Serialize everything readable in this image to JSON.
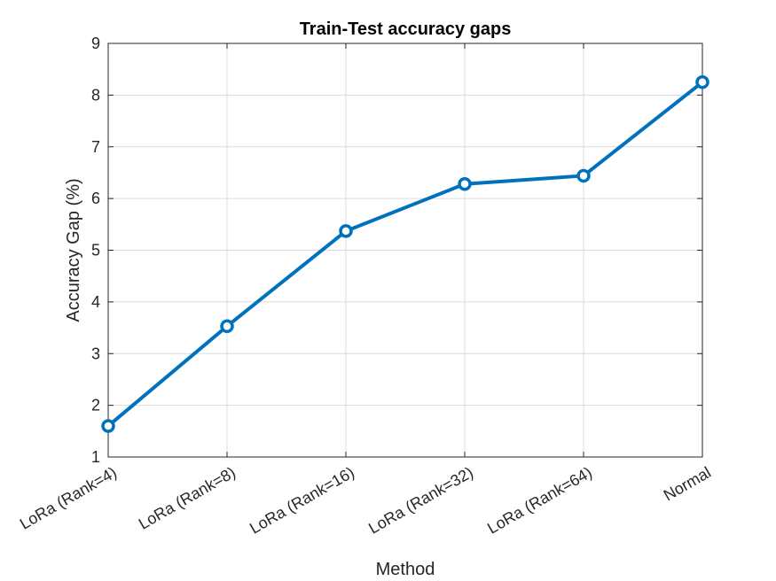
{
  "chart_data": {
    "type": "line",
    "title": "Train-Test accuracy gaps",
    "xlabel": "Method",
    "ylabel": "Accuracy Gap (%)",
    "categories": [
      "LoRa (Rank=4)",
      "LoRa (Rank=8)",
      "LoRa (Rank=16)",
      "LoRa (Rank=32)",
      "LoRa (Rank=64)",
      "Normal"
    ],
    "series": [
      {
        "values": [
          1.6,
          3.53,
          5.37,
          6.28,
          6.44,
          8.25
        ],
        "color": "#0072BD",
        "marker": "circle"
      }
    ],
    "ylim": [
      1,
      9
    ],
    "yticks": [
      1,
      2,
      3,
      4,
      5,
      6,
      7,
      8,
      9
    ],
    "grid": true,
    "legend": "none"
  }
}
